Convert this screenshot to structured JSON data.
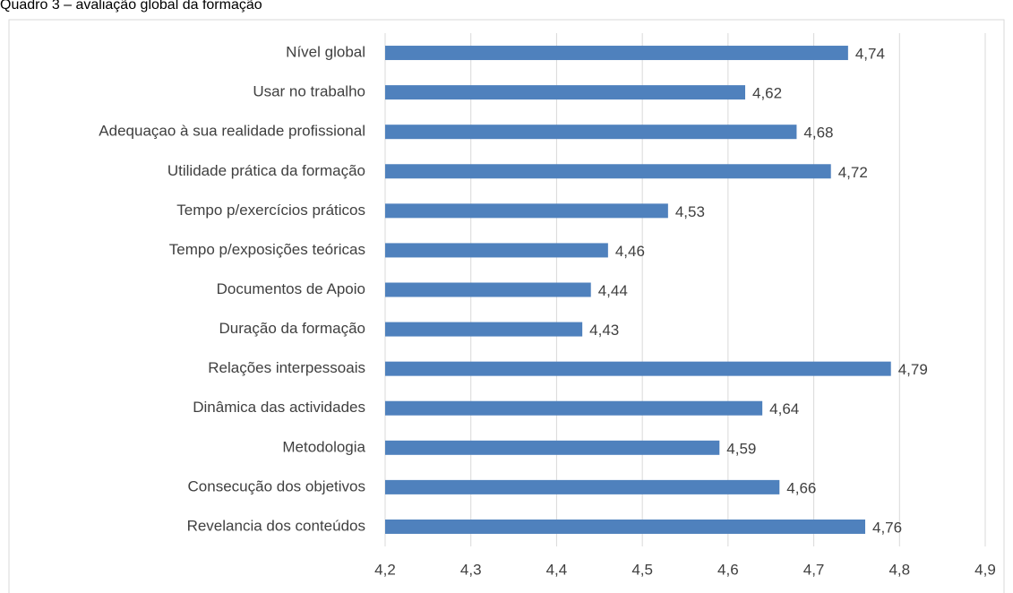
{
  "chart_data": {
    "type": "bar",
    "orientation": "horizontal",
    "title": "Quadro 3 – avaliação global da formação",
    "categories": [
      "Nível global",
      "Usar no trabalho",
      "Adequaçao à sua realidade profissional",
      "Utilidade prática da formação",
      "Tempo p/exercícios práticos",
      "Tempo p/exposições teóricas",
      "Documentos de Apoio",
      "Duração da formação",
      "Relações interpessoais",
      "Dinâmica das actividades",
      "Metodologia",
      "Consecução dos objetivos",
      "Revelancia dos conteúdos"
    ],
    "values": [
      4.74,
      4.62,
      4.68,
      4.72,
      4.53,
      4.46,
      4.44,
      4.43,
      4.79,
      4.64,
      4.59,
      4.66,
      4.76
    ],
    "value_labels": [
      "4,74",
      "4,62",
      "4,68",
      "4,72",
      "4,53",
      "4,46",
      "4,44",
      "4,43",
      "4,79",
      "4,64",
      "4,59",
      "4,66",
      "4,76"
    ],
    "color": "#4f81bd",
    "xlim": [
      4.2,
      4.9
    ],
    "xticks": [
      {
        "value": 4.2,
        "label": "4,2"
      },
      {
        "value": 4.3,
        "label": "4,3"
      },
      {
        "value": 4.4,
        "label": "4,4"
      },
      {
        "value": 4.5,
        "label": "4,5"
      },
      {
        "value": 4.6,
        "label": "4,6"
      },
      {
        "value": 4.7,
        "label": "4,7"
      },
      {
        "value": 4.8,
        "label": "4,8"
      },
      {
        "value": 4.9,
        "label": "4,9"
      }
    ],
    "grid": true
  }
}
